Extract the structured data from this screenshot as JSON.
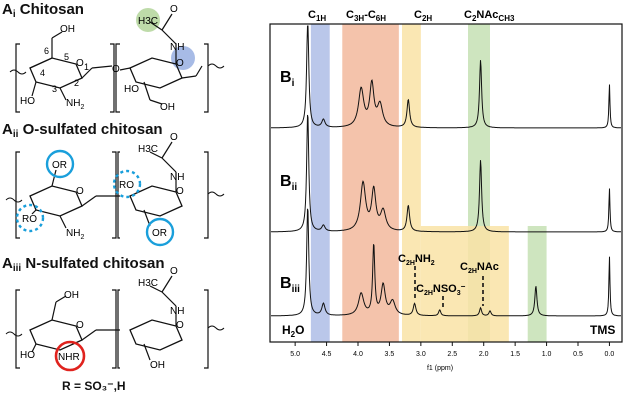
{
  "panels": {
    "a_i": {
      "prefix": "A",
      "sub": "i",
      "title": "Chitosan"
    },
    "a_ii": {
      "prefix": "A",
      "sub": "ii",
      "title": "O-sulfated chitosan"
    },
    "a_iii": {
      "prefix": "A",
      "sub": "iii",
      "title": "N-sulfated chitosan"
    }
  },
  "structure_labels": {
    "h3c": "H3C",
    "o": "O",
    "nh": "NH",
    "nh2": "NH",
    "nh2_sub": "2",
    "oh": "OH",
    "ho": "HO",
    "or": "OR",
    "ro": "RO",
    "nhr": "NHR",
    "atom_numbers": [
      "6",
      "5",
      "4",
      "3",
      "2",
      "1"
    ]
  },
  "r_definition": "R = SO₃⁻,H",
  "chart_data": {
    "type": "line",
    "title": "",
    "xlabel": "f1 (ppm)",
    "xlim": [
      5.4,
      -0.2
    ],
    "x_ticks": [
      "5.0",
      "4.5",
      "4.0",
      "3.5",
      "3.0",
      "2.5",
      "2.0",
      "1.5",
      "1.0",
      "0.5",
      "0.0"
    ],
    "region_labels": [
      {
        "label": "C1H",
        "ppm_range": [
          4.75,
          4.45
        ],
        "color": "#aebde6"
      },
      {
        "label": "C3H-C6H",
        "ppm_range": [
          4.25,
          3.35
        ],
        "color": "#f2b89c"
      },
      {
        "label": "C2H",
        "ppm_range": [
          3.3,
          3.0
        ],
        "color": "#f9e3a6"
      },
      {
        "label": "C2NAcCH3",
        "ppm_range": [
          2.25,
          1.9
        ],
        "color": "#c6e0b4"
      }
    ],
    "extra_regions": [
      {
        "ppm_range": [
          3.0,
          1.6
        ],
        "color": "#f9e3a6",
        "trace": "B_iii"
      },
      {
        "ppm_range": [
          1.3,
          1.0
        ],
        "color": "#c6e0b4",
        "trace": "B_iii"
      }
    ],
    "series": [
      {
        "name": "Bi",
        "label_main": "B",
        "label_sub": "i"
      },
      {
        "name": "Bii",
        "label_main": "B",
        "label_sub": "ii"
      },
      {
        "name": "Biii",
        "label_main": "B",
        "label_sub": "iii"
      }
    ],
    "annotations": {
      "c2h_nh2": "C2HNH2",
      "c2h_nso3": "C2HNSO3⁻",
      "c2h_nac": "C2HNAc",
      "h2o": "H2O",
      "tms": "TMS"
    }
  },
  "colors": {
    "c1h_band": "#aebde6",
    "c3h_band": "#f2b89c",
    "c2h_band": "#f9e3a6",
    "nac_band": "#c6e0b4",
    "green_circle": "#b7d7a0",
    "blue_circle": "#9db4e3",
    "or_circle": "#1a9fdb",
    "nhr_circle": "#e0231e"
  }
}
